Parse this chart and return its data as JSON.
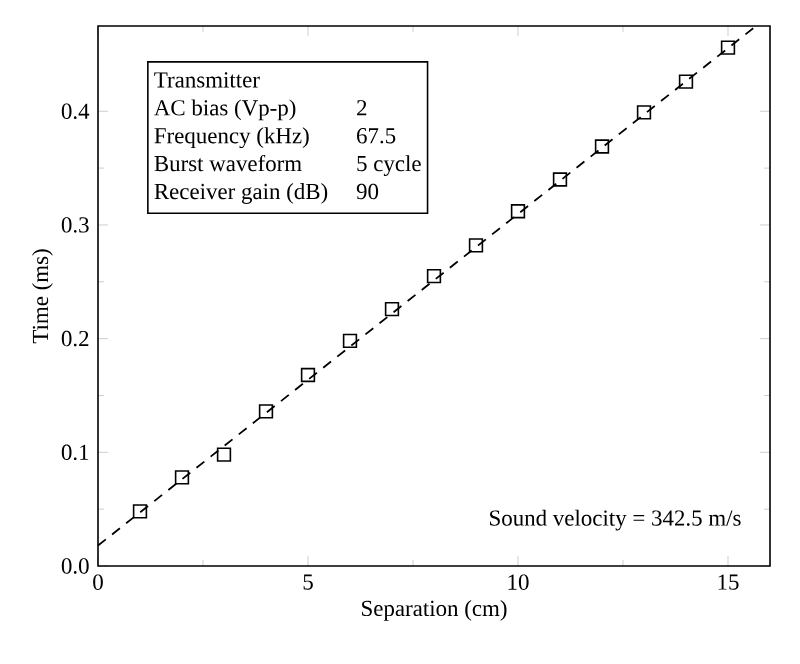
{
  "chart_data": {
    "type": "scatter",
    "xlabel": "Separation (cm)",
    "ylabel": "Time (ms)",
    "xlim": [
      0,
      16
    ],
    "ylim": [
      0,
      0.475
    ],
    "xticks": [
      0,
      5,
      10,
      15
    ],
    "yticks": [
      {
        "value": 0,
        "label": "0.0"
      },
      0.1,
      0.2,
      0.3,
      0.4
    ],
    "grid": false,
    "marker": "square",
    "series": [
      {
        "color": "#000000",
        "x": [
          1,
          2,
          3,
          4,
          5,
          6,
          7,
          8,
          9,
          10,
          11,
          12,
          13,
          14,
          15
        ],
        "values": [
          0.048,
          0.078,
          0.098,
          0.136,
          0.168,
          0.198,
          0.226,
          0.255,
          0.282,
          0.312,
          0.34,
          0.369,
          0.399,
          0.426,
          0.456
        ]
      },
      {
        "type": "line",
        "color": "#000000",
        "marker": "none",
        "line_style": "dashed",
        "x": [
          0,
          15.6
        ],
        "values": [
          0.018,
          0.473
        ]
      }
    ],
    "annotations": [
      "Transmitter",
      "AC bias (Vp-p)",
      "2",
      "Frequency (kHz)",
      "67.5",
      "Burst waveform",
      "5 cycle",
      "Receiver gain (dB)",
      "90",
      "Sound velocity =  342.5 m/s"
    ]
  }
}
